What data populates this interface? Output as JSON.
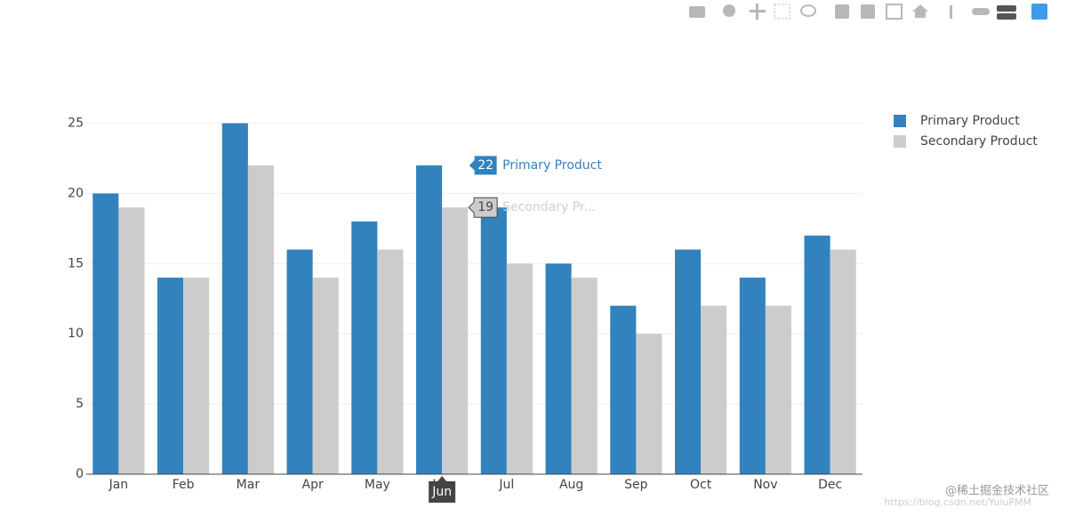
{
  "chart_data": {
    "type": "bar",
    "categories": [
      "Jan",
      "Feb",
      "Mar",
      "Apr",
      "May",
      "Jun",
      "Jul",
      "Aug",
      "Sep",
      "Oct",
      "Nov",
      "Dec"
    ],
    "series": [
      {
        "name": "Primary Product",
        "color": "#3182bd",
        "values": [
          20,
          14,
          25,
          16,
          18,
          22,
          19,
          15,
          12,
          16,
          14,
          17
        ]
      },
      {
        "name": "Secondary Product",
        "color": "#cccccc",
        "values": [
          19,
          14,
          22,
          14,
          16,
          19,
          15,
          14,
          10,
          12,
          12,
          16
        ]
      }
    ],
    "ylim": [
      0,
      26.3
    ],
    "yticks": [
      0,
      5,
      10,
      15,
      20,
      25
    ],
    "grid": true,
    "legend": "top-right",
    "hover": {
      "category": 5,
      "secondary_label": "Secondary Pr..."
    },
    "watermark": {
      "url": "https://blog.csdn.net/YuiuPMM",
      "brand": "@稀土掘金技术社区"
    }
  }
}
